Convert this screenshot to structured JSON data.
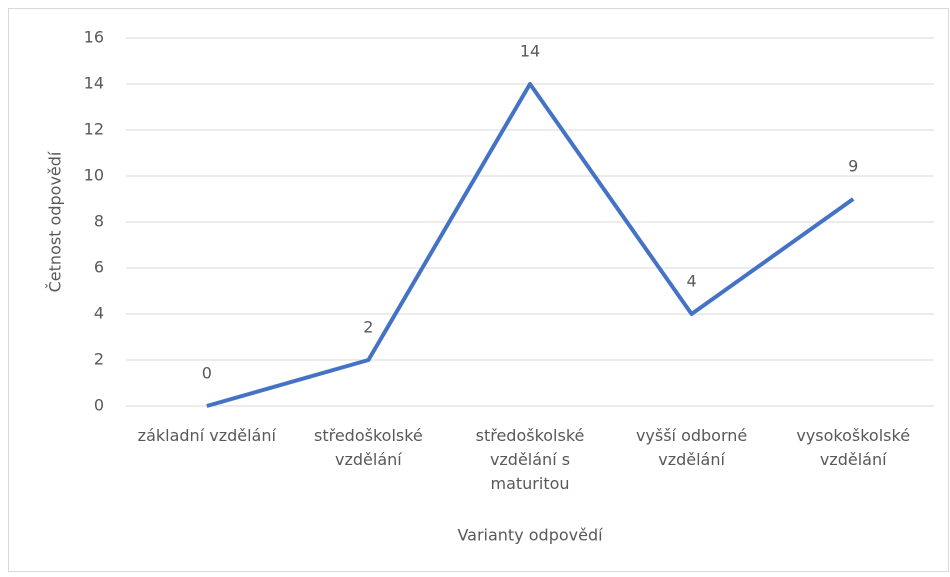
{
  "chart_data": {
    "type": "line",
    "categories": [
      "základní vzdělání",
      "středoškolské vzdělání",
      "středoškolské vzdělání s maturitou",
      "vyšší odborné vzdělání",
      "vysokoškolské vzdělání"
    ],
    "series": [
      {
        "name": "Četnost odpovědí",
        "color": "#4472c4",
        "values": [
          0,
          2,
          14,
          4,
          9
        ]
      }
    ],
    "ylim": [
      0,
      16
    ],
    "yticks": [
      0,
      2,
      4,
      6,
      8,
      10,
      12,
      14,
      16
    ],
    "grid": true,
    "xlabel": "Varianty odpovědí",
    "ylabel": "Četnost odpovědí"
  }
}
